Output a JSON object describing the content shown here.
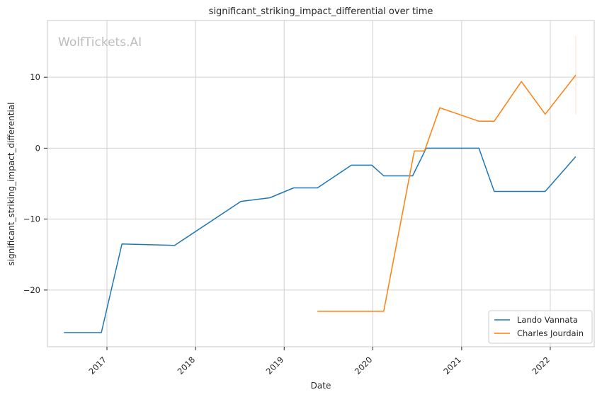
{
  "chart_data": {
    "type": "line",
    "title": "significant_striking_impact_differential over time",
    "xlabel": "Date",
    "ylabel": "significant_striking_impact_differential",
    "watermark": "WolfTickets.AI",
    "x_ticks": [
      "2017",
      "2018",
      "2019",
      "2020",
      "2021",
      "2022"
    ],
    "y_ticks": [
      "10",
      "0",
      "−10",
      "−20"
    ],
    "ylim": [
      -28,
      18
    ],
    "xlim": [
      "2016-05-01",
      "2022-07-01"
    ],
    "grid": true,
    "legend_position": "bottom-right",
    "series": [
      {
        "name": "Lando Vannata",
        "color": "#1f77b4",
        "points": [
          {
            "x": "2016-07-08",
            "y": -26
          },
          {
            "x": "2016-12-09",
            "y": -26
          },
          {
            "x": "2017-03-04",
            "y": -13.5
          },
          {
            "x": "2017-10-07",
            "y": -13.7
          },
          {
            "x": "2018-07-07",
            "y": -7.5
          },
          {
            "x": "2018-11-03",
            "y": -7
          },
          {
            "x": "2019-02-09",
            "y": -5.6
          },
          {
            "x": "2019-05-18",
            "y": -5.6
          },
          {
            "x": "2019-10-05",
            "y": -2.4
          },
          {
            "x": "2019-12-28",
            "y": -2.4
          },
          {
            "x": "2020-02-15",
            "y": -3.9
          },
          {
            "x": "2020-06-13",
            "y": -3.9
          },
          {
            "x": "2020-08-08",
            "y": 0
          },
          {
            "x": "2021-03-13",
            "y": 0
          },
          {
            "x": "2021-05-15",
            "y": -6.1
          },
          {
            "x": "2021-12-11",
            "y": -6.1
          },
          {
            "x": "2022-04-16",
            "y": -1.2
          }
        ]
      },
      {
        "name": "Charles Jourdain",
        "color": "#ff7f0e",
        "points": [
          {
            "x": "2019-05-18",
            "y": -23
          },
          {
            "x": "2020-02-15",
            "y": -23
          },
          {
            "x": "2020-06-20",
            "y": -0.4
          },
          {
            "x": "2020-08-01",
            "y": -0.4
          },
          {
            "x": "2020-10-03",
            "y": 5.7
          },
          {
            "x": "2021-03-13",
            "y": 3.8
          },
          {
            "x": "2021-05-15",
            "y": 3.8
          },
          {
            "x": "2021-09-04",
            "y": 9.4
          },
          {
            "x": "2021-12-11",
            "y": 4.8
          },
          {
            "x": "2022-04-16",
            "y": 10.3
          }
        ],
        "error_bar": {
          "x": "2022-04-16",
          "low": 4.8,
          "high": 15.8
        }
      }
    ]
  }
}
